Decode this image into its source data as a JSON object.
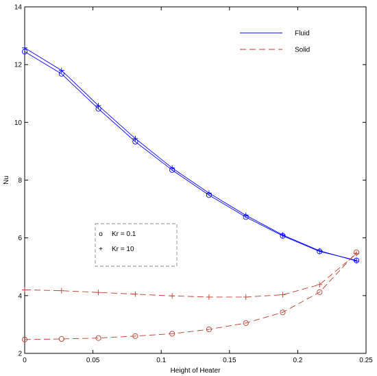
{
  "chart_data": {
    "type": "line",
    "title": "",
    "xlabel": "Height of Heater",
    "ylabel": "Nu",
    "xlim": [
      0,
      0.25
    ],
    "ylim": [
      2,
      14
    ],
    "xticks": [
      0,
      0.05,
      0.1,
      0.15,
      0.2,
      0.25
    ],
    "xtick_labels": [
      "0",
      "0.05",
      "0.1",
      "0.15",
      "0.2",
      "0.25"
    ],
    "yticks": [
      2,
      4,
      6,
      8,
      10,
      12,
      14
    ],
    "ytick_labels": [
      "2",
      "4",
      "6",
      "8",
      "10",
      "12",
      "14"
    ],
    "grid": false,
    "x": [
      0,
      0.027,
      0.054,
      0.081,
      0.108,
      0.135,
      0.162,
      0.189,
      0.216,
      0.243
    ],
    "series": [
      {
        "name": "Kr = 0.1",
        "group": "Fluid",
        "marker": "circle",
        "color": "#0000ff",
        "values": [
          12.45,
          11.68,
          10.47,
          9.33,
          8.35,
          7.48,
          6.72,
          6.07,
          5.53,
          5.22
        ]
      },
      {
        "name": "Kr = 10",
        "group": "Fluid",
        "marker": "plus",
        "color": "#0000ff",
        "values": [
          12.58,
          11.8,
          10.58,
          9.44,
          8.42,
          7.55,
          6.78,
          6.1,
          5.55,
          5.2
        ]
      },
      {
        "name": "Kr = 0.1",
        "group": "Solid",
        "marker": "circle",
        "color": "#c0392b",
        "values": [
          2.48,
          2.5,
          2.53,
          2.6,
          2.68,
          2.83,
          3.05,
          3.42,
          4.12,
          5.5
        ]
      },
      {
        "name": "Kr = 10",
        "group": "Solid",
        "marker": "plus",
        "color": "#c0392b",
        "values": [
          4.2,
          4.17,
          4.11,
          4.05,
          3.99,
          3.95,
          3.95,
          4.03,
          4.38,
          5.45
        ]
      }
    ],
    "legend_lines": {
      "placement": "top-right",
      "items": [
        {
          "label": "Fluid",
          "color": "#0000ff",
          "style": "solid"
        },
        {
          "label": "Solid",
          "color": "#c0392b",
          "style": "dashed"
        }
      ]
    },
    "legend_markers": {
      "placement": "center-left",
      "items": [
        {
          "symbol": "o",
          "label": "Kr = 0.1"
        },
        {
          "symbol": "+",
          "label": "Kr = 10"
        }
      ]
    }
  }
}
